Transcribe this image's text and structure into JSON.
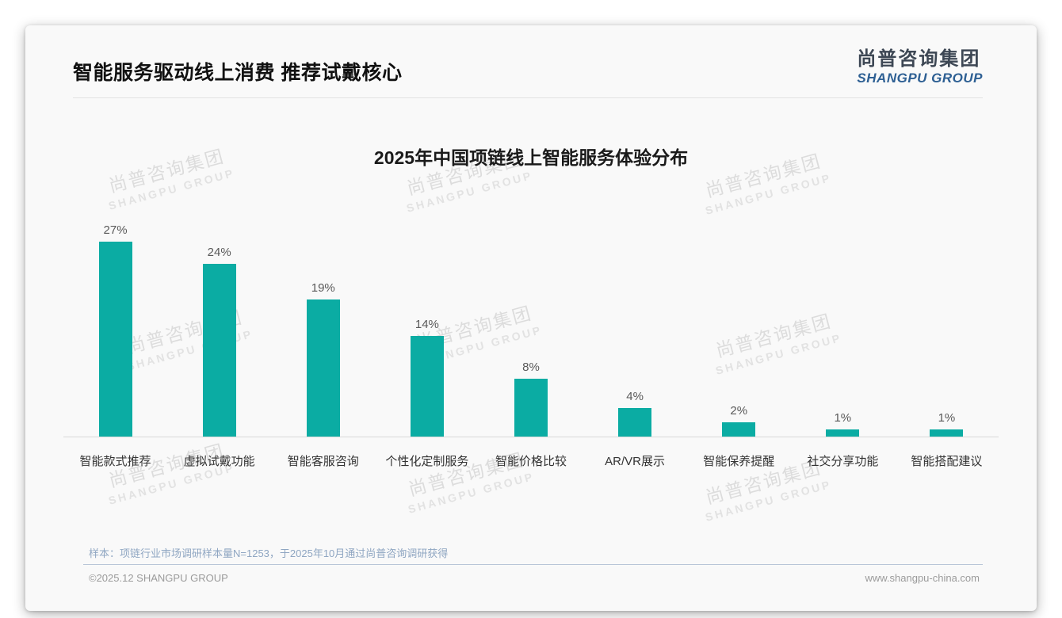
{
  "slide": {
    "title": "智能服务驱动线上消费 推荐试戴核心",
    "logo": {
      "cn": "尚普咨询集团",
      "en": "SHANGPU GROUP"
    },
    "watermark": {
      "line1": "尚普咨询集团",
      "line2": "SHANGPU GROUP"
    },
    "footer": {
      "note": "样本：项链行业市场调研样本量N=1253，于2025年10月通过尚普咨询调研获得",
      "copyright": "©2025.12 SHANGPU GROUP",
      "website": "www.shangpu-china.com"
    }
  },
  "chart_data": {
    "type": "bar",
    "title": "2025年中国项链线上智能服务体验分布",
    "categories": [
      "智能款式推荐",
      "虚拟试戴功能",
      "智能客服咨询",
      "个性化定制服务",
      "智能价格比较",
      "AR/VR展示",
      "智能保养提醒",
      "社交分享功能",
      "智能搭配建议"
    ],
    "values": [
      27,
      24,
      19,
      14,
      8,
      4,
      2,
      1,
      1
    ],
    "value_labels": [
      "27%",
      "24%",
      "19%",
      "14%",
      "8%",
      "4%",
      "2%",
      "1%",
      "1%"
    ],
    "unit": "%",
    "bar_color": "#0baca3",
    "ylim": [
      0,
      30
    ],
    "grid": false,
    "legend": false,
    "value_label_color": "#595959",
    "axis_line_color": "#d9d9d9"
  }
}
